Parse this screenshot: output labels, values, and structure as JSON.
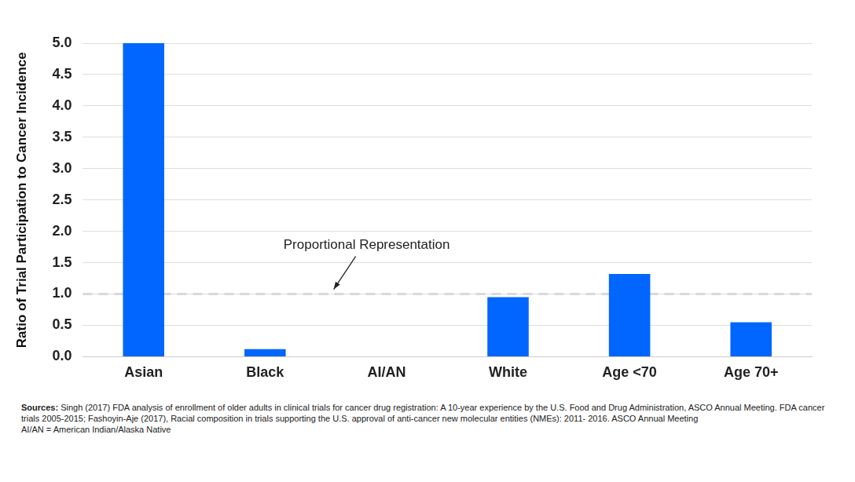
{
  "chart_data": {
    "type": "bar",
    "categories": [
      "Asian",
      "Black",
      "AI/AN",
      "White",
      "Age <70",
      "Age 70+"
    ],
    "values": [
      5.0,
      0.12,
      0,
      0.95,
      1.32,
      0.55
    ],
    "color": "#0066ff",
    "ylabel": "Ratio of Trial Participation to Cancer Incidence",
    "ylim": [
      0,
      5
    ],
    "yticks": [
      {
        "value": 0,
        "label": "0.0"
      },
      0.5,
      {
        "value": 1,
        "label": "1.0"
      },
      1.5,
      {
        "value": 2,
        "label": "2.0"
      },
      2.5,
      {
        "value": 3,
        "label": "3.0"
      },
      3.5,
      {
        "value": 4,
        "label": "4.0"
      },
      4.5,
      {
        "value": 5,
        "label": "5.0"
      }
    ],
    "grid": true,
    "reference_line": {
      "y": 1,
      "label": "Proportional Representation"
    },
    "source_label": "Sources:",
    "source_text": "Singh (2017) FDA analysis of enrollment of older adults in clinical trials for cancer drug registration: A 10-year experience by the U.S. Food and Drug Administration, ASCO Annual Meeting.  FDA cancer trials 2005-2015; Fashoyin-Aje (2017), Racial composition in trials supporting the U.S. approval of anti-cancer new molecular entities (NMEs): 2011- 2016. ASCO Annual Meeting",
    "note": "AI/AN = American Indian/Alaska Native"
  }
}
